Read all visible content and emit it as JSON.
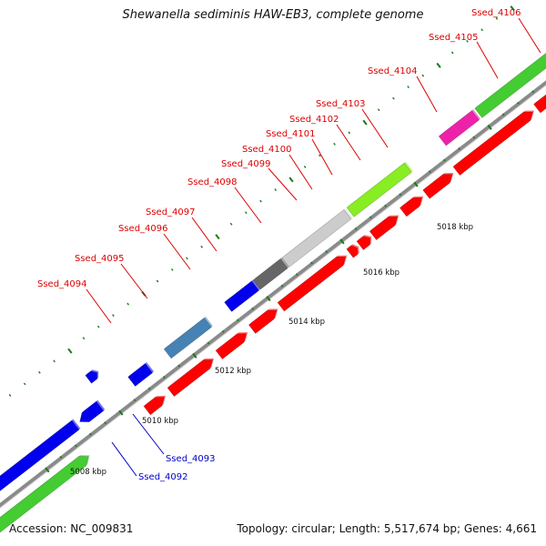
{
  "title": "Shewanella sediminis HAW-EB3, complete genome",
  "accession": "Accession: NC_009831",
  "summary": "Topology: circular; Length: 5,517,674 bp; Genes: 4,661",
  "colors": {
    "backbone": "#888888",
    "forward_track_gene": "#ff0000",
    "tick": "#1a7a1a",
    "label_red": "#dd0000",
    "label_blue": "#0000cc"
  },
  "ticks": [
    {
      "label": "5008 kbp"
    },
    {
      "label": "5010 kbp"
    },
    {
      "label": "5012 kbp"
    },
    {
      "label": "5014 kbp"
    },
    {
      "label": "5016 kbp"
    },
    {
      "label": "5018 kbp"
    }
  ],
  "labels": [
    {
      "name": "Ssed_4092",
      "color": "blue"
    },
    {
      "name": "Ssed_4093",
      "color": "blue"
    },
    {
      "name": "Ssed_4094",
      "color": "red"
    },
    {
      "name": "Ssed_4095",
      "color": "red"
    },
    {
      "name": "Ssed_4096",
      "color": "red"
    },
    {
      "name": "Ssed_4097",
      "color": "red"
    },
    {
      "name": "Ssed_4098",
      "color": "red"
    },
    {
      "name": "Ssed_4099",
      "color": "red"
    },
    {
      "name": "Ssed_4100",
      "color": "red"
    },
    {
      "name": "Ssed_4101",
      "color": "red"
    },
    {
      "name": "Ssed_4102",
      "color": "red"
    },
    {
      "name": "Ssed_4103",
      "color": "red"
    },
    {
      "name": "Ssed_4104",
      "color": "red"
    },
    {
      "name": "Ssed_4105",
      "color": "red"
    },
    {
      "name": "Ssed_4106",
      "color": "red"
    }
  ]
}
